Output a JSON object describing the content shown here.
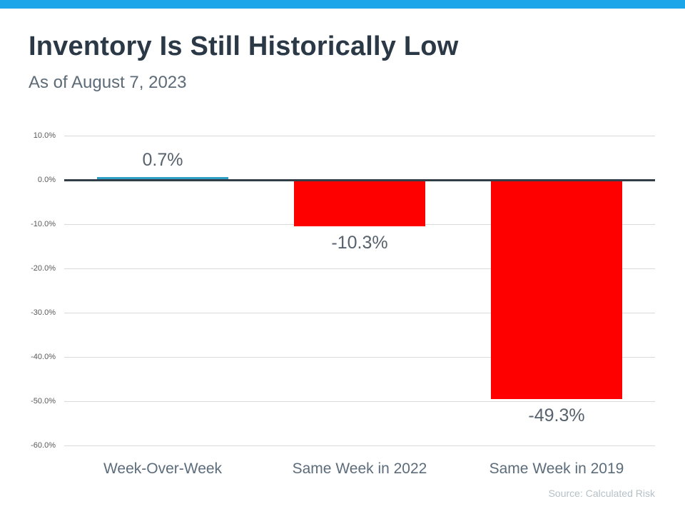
{
  "page": {
    "title": "Inventory Is Still Historically Low",
    "subtitle": "As of August 7, 2023",
    "source": "Source: Calculated Risk"
  },
  "colors": {
    "top_stripe": "#1CA6EA",
    "bar_positive": "#2F9FC6",
    "bar_negative": "#FF0000",
    "gridline": "#D9D9D9",
    "zero_axis": "#323E48",
    "title_text": "#2B3947",
    "label_text": "#57626D"
  },
  "chart_data": {
    "type": "bar",
    "title": "Inventory Is Still Historically Low",
    "subtitle": "As of August 7, 2023",
    "xlabel": "",
    "ylabel": "",
    "categories": [
      "Week-Over-Week",
      "Same Week in 2022",
      "Same Week in 2019"
    ],
    "values": [
      0.7,
      -10.3,
      -49.3
    ],
    "value_labels": [
      "0.7%",
      "-10.3%",
      "-49.3%"
    ],
    "y_ticks": [
      10,
      0,
      -10,
      -20,
      -30,
      -40,
      -50,
      -60
    ],
    "y_tick_labels": [
      "10.0%",
      "0.0%",
      "-10.0%",
      "-20.0%",
      "-30.0%",
      "-40.0%",
      "-50.0%",
      "-60.0%"
    ],
    "ylim": [
      -60,
      10
    ],
    "grid": true,
    "legend": false,
    "annotation": "Source: Calculated Risk"
  }
}
